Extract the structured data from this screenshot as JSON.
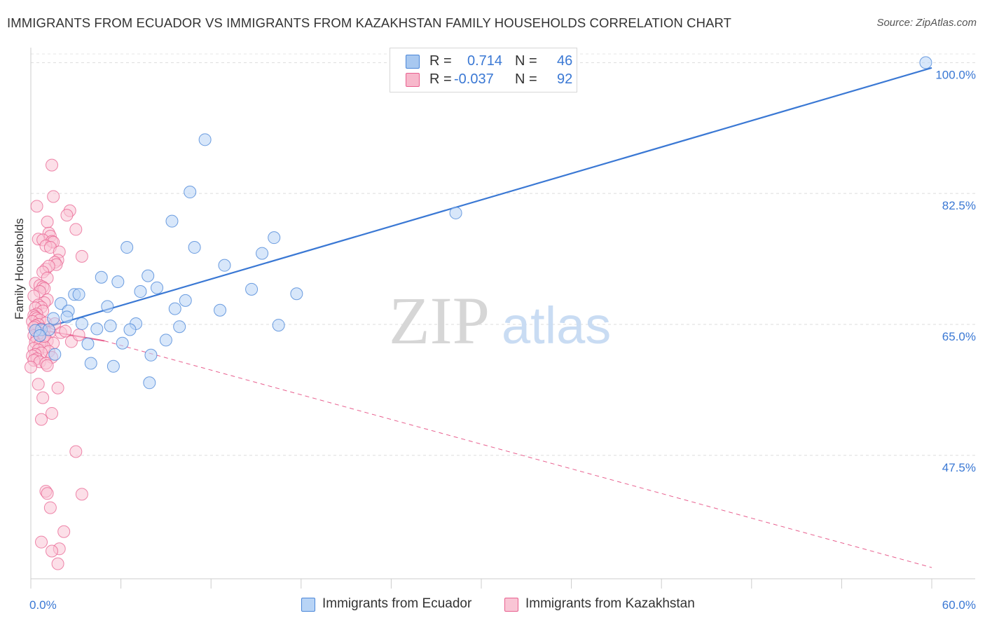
{
  "title": "IMMIGRANTS FROM ECUADOR VS IMMIGRANTS FROM KAZAKHSTAN FAMILY HOUSEHOLDS CORRELATION CHART",
  "source": "Source: ZipAtlas.com",
  "watermark": {
    "zip": "ZIP",
    "atlas": "atlas"
  },
  "legend": {
    "rows": [
      {
        "r_label": "R =",
        "r_value": "0.714",
        "n_label": "N =",
        "n_value": "46",
        "color": "#a8c8f0"
      },
      {
        "r_label": "R =",
        "r_value": "-0.037",
        "n_label": "N =",
        "n_value": "92",
        "color": "#f7b8cb"
      }
    ]
  },
  "bottom_legend": [
    {
      "label": "Immigrants from Ecuador",
      "color": "#b8d4f6"
    },
    {
      "label": "Immigrants from Kazakhstan",
      "color": "#f9c5d5"
    }
  ],
  "chart_data": {
    "type": "scatter",
    "title": "IMMIGRANTS FROM ECUADOR VS IMMIGRANTS FROM KAZAKHSTAN FAMILY HOUSEHOLDS CORRELATION CHART",
    "xlabel": "",
    "ylabel": "Family Households",
    "xlim": [
      0,
      60
    ],
    "ylim": [
      31,
      102
    ],
    "x_tick_labels": [
      "0.0%",
      "60.0%"
    ],
    "y_ticks": [
      47.5,
      65.0,
      82.5,
      100.0
    ],
    "y_tick_labels": [
      "47.5%",
      "65.0%",
      "82.5%",
      "100.0%"
    ],
    "grid": true,
    "legend_position": "top-center",
    "series": [
      {
        "name": "Immigrants from Ecuador",
        "color": "#4a86d8",
        "fill": "#b8d4f6",
        "trend": {
          "x": [
            0.0,
            60.0
          ],
          "y": [
            64.0,
            99.3
          ],
          "style": "solid"
        },
        "points": [
          [
            59.6,
            100.0
          ],
          [
            11.6,
            89.7
          ],
          [
            10.6,
            82.7
          ],
          [
            28.3,
            79.9
          ],
          [
            9.4,
            78.8
          ],
          [
            16.2,
            76.6
          ],
          [
            6.4,
            75.3
          ],
          [
            10.9,
            75.3
          ],
          [
            15.4,
            74.5
          ],
          [
            12.9,
            72.9
          ],
          [
            4.7,
            71.3
          ],
          [
            7.8,
            71.5
          ],
          [
            5.8,
            70.7
          ],
          [
            8.4,
            69.9
          ],
          [
            7.3,
            69.4
          ],
          [
            14.7,
            69.7
          ],
          [
            17.7,
            69.1
          ],
          [
            2.9,
            69.0
          ],
          [
            3.2,
            69.0
          ],
          [
            10.3,
            68.2
          ],
          [
            2.0,
            67.8
          ],
          [
            5.1,
            67.4
          ],
          [
            9.6,
            67.1
          ],
          [
            12.6,
            66.9
          ],
          [
            2.5,
            66.8
          ],
          [
            2.4,
            66.0
          ],
          [
            1.5,
            65.8
          ],
          [
            3.4,
            65.1
          ],
          [
            7.0,
            65.1
          ],
          [
            5.3,
            64.8
          ],
          [
            9.9,
            64.7
          ],
          [
            16.5,
            64.9
          ],
          [
            4.4,
            64.4
          ],
          [
            6.6,
            64.3
          ],
          [
            0.7,
            64.3
          ],
          [
            0.3,
            64.2
          ],
          [
            1.2,
            64.3
          ],
          [
            3.8,
            62.4
          ],
          [
            6.1,
            62.5
          ],
          [
            9.0,
            62.9
          ],
          [
            1.6,
            61.0
          ],
          [
            8.0,
            60.9
          ],
          [
            4.0,
            59.8
          ],
          [
            5.5,
            59.4
          ],
          [
            7.9,
            57.2
          ],
          [
            0.6,
            63.5
          ]
        ]
      },
      {
        "name": "Immigrants from Kazakhstan",
        "color": "#e8608f",
        "fill": "#f9c5d5",
        "trend": {
          "solid": {
            "x": [
              0.0,
              4.9
            ],
            "y": [
              64.5,
              62.8
            ]
          },
          "dashed": {
            "x": [
              4.9,
              60.0
            ],
            "y": [
              62.8,
              32.5
            ]
          }
        },
        "points": [
          [
            1.4,
            86.3
          ],
          [
            1.5,
            82.1
          ],
          [
            0.4,
            80.8
          ],
          [
            2.6,
            80.2
          ],
          [
            2.4,
            79.6
          ],
          [
            1.1,
            78.7
          ],
          [
            3.0,
            77.7
          ],
          [
            1.2,
            77.2
          ],
          [
            1.3,
            76.8
          ],
          [
            0.5,
            76.4
          ],
          [
            0.8,
            76.3
          ],
          [
            1.4,
            76.1
          ],
          [
            1.5,
            76.0
          ],
          [
            1.0,
            75.5
          ],
          [
            1.3,
            75.3
          ],
          [
            1.9,
            74.7
          ],
          [
            3.4,
            74.1
          ],
          [
            1.8,
            73.6
          ],
          [
            1.6,
            73.3
          ],
          [
            1.7,
            73.0
          ],
          [
            1.0,
            72.4
          ],
          [
            1.2,
            72.8
          ],
          [
            0.8,
            72.0
          ],
          [
            1.1,
            71.2
          ],
          [
            0.3,
            70.5
          ],
          [
            0.6,
            70.2
          ],
          [
            0.8,
            70.0
          ],
          [
            0.9,
            69.8
          ],
          [
            0.6,
            69.4
          ],
          [
            0.2,
            68.8
          ],
          [
            1.1,
            68.3
          ],
          [
            0.9,
            67.9
          ],
          [
            0.5,
            67.6
          ],
          [
            0.7,
            67.3
          ],
          [
            0.3,
            67.2
          ],
          [
            0.8,
            66.8
          ],
          [
            0.4,
            66.4
          ],
          [
            0.2,
            66.2
          ],
          [
            0.3,
            66.0
          ],
          [
            0.4,
            65.8
          ],
          [
            0.6,
            65.6
          ],
          [
            0.1,
            65.4
          ],
          [
            1.0,
            65.2
          ],
          [
            0.5,
            65.0
          ],
          [
            0.3,
            64.8
          ],
          [
            0.2,
            64.6
          ],
          [
            0.7,
            64.4
          ],
          [
            0.9,
            64.2
          ],
          [
            1.3,
            64.0
          ],
          [
            0.6,
            63.8
          ],
          [
            0.2,
            63.5
          ],
          [
            2.0,
            63.9
          ],
          [
            0.4,
            63.2
          ],
          [
            0.8,
            63.0
          ],
          [
            1.1,
            62.8
          ],
          [
            0.3,
            62.6
          ],
          [
            1.5,
            62.5
          ],
          [
            2.7,
            62.7
          ],
          [
            0.6,
            62.3
          ],
          [
            0.9,
            62.0
          ],
          [
            0.2,
            61.8
          ],
          [
            0.5,
            61.6
          ],
          [
            1.2,
            61.4
          ],
          [
            0.7,
            61.2
          ],
          [
            0.3,
            61.0
          ],
          [
            0.1,
            60.8
          ],
          [
            1.4,
            60.6
          ],
          [
            0.4,
            60.4
          ],
          [
            0.2,
            60.2
          ],
          [
            0.6,
            60.0
          ],
          [
            1.0,
            59.8
          ],
          [
            0.0,
            59.3
          ],
          [
            1.1,
            59.5
          ],
          [
            0.5,
            57.0
          ],
          [
            1.8,
            56.5
          ],
          [
            0.8,
            55.2
          ],
          [
            1.4,
            53.1
          ],
          [
            0.7,
            52.3
          ],
          [
            3.0,
            48.0
          ],
          [
            1.0,
            42.7
          ],
          [
            1.1,
            42.4
          ],
          [
            3.4,
            42.3
          ],
          [
            1.3,
            40.5
          ],
          [
            2.2,
            37.3
          ],
          [
            0.7,
            35.9
          ],
          [
            1.9,
            35.0
          ],
          [
            1.4,
            34.7
          ],
          [
            1.8,
            33.0
          ],
          [
            0.9,
            63.4
          ],
          [
            2.3,
            64.1
          ],
          [
            3.2,
            63.6
          ],
          [
            1.6,
            65.1
          ]
        ]
      }
    ]
  }
}
